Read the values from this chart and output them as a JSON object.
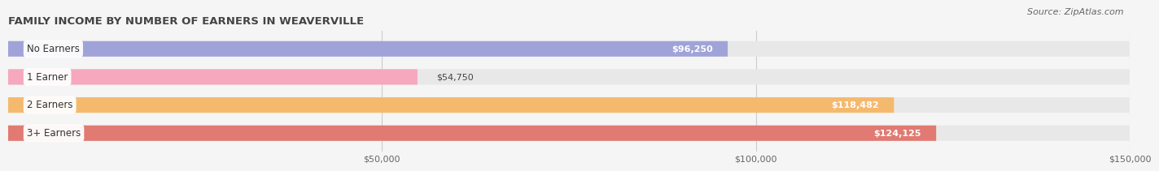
{
  "title": "FAMILY INCOME BY NUMBER OF EARNERS IN WEAVERVILLE",
  "source": "Source: ZipAtlas.com",
  "categories": [
    "No Earners",
    "1 Earner",
    "2 Earners",
    "3+ Earners"
  ],
  "values": [
    96250,
    54750,
    118482,
    124125
  ],
  "bar_colors": [
    "#a0a3d8",
    "#f5a8be",
    "#f5b96e",
    "#e07a72"
  ],
  "bar_labels": [
    "$96,250",
    "$54,750",
    "$118,482",
    "$124,125"
  ],
  "xlim": [
    0,
    150000
  ],
  "xticks": [
    50000,
    100000,
    150000
  ],
  "xtick_labels": [
    "$50,000",
    "$100,000",
    "$150,000"
  ],
  "background_color": "#f5f5f5",
  "bar_bg_color": "#e8e8e8",
  "title_fontsize": 9.5,
  "source_fontsize": 8,
  "label_fontsize": 8.5,
  "value_fontsize": 8,
  "tick_fontsize": 8,
  "bar_height": 0.55
}
